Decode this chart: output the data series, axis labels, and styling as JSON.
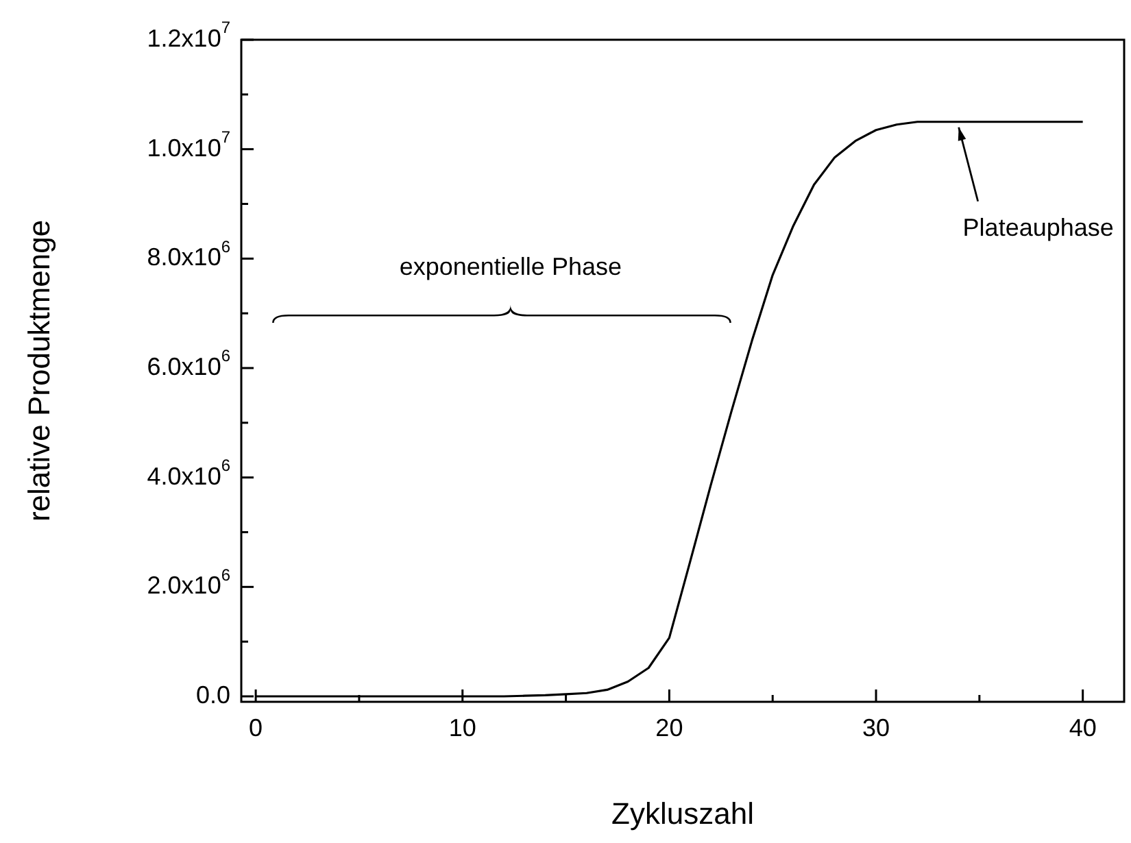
{
  "chart_data": {
    "type": "line",
    "xlabel": "Zykluszahl",
    "ylabel": "relative Produktmenge",
    "x": [
      0,
      1,
      2,
      3,
      4,
      5,
      6,
      7,
      8,
      9,
      10,
      11,
      12,
      13,
      14,
      15,
      16,
      17,
      18,
      19,
      20,
      21,
      22,
      23,
      24,
      25,
      26,
      27,
      28,
      29,
      30,
      31,
      32,
      33,
      34,
      35,
      36,
      37,
      38,
      39,
      40
    ],
    "series": [
      {
        "color": "#000000",
        "values": [
          0,
          0,
          0,
          0,
          0,
          0,
          0,
          0,
          0,
          0,
          0,
          0,
          0,
          10000,
          20000,
          40000,
          60000,
          120000,
          270000,
          520000,
          1070000,
          2450000,
          3850000,
          5200000,
          6500000,
          7700000,
          8600000,
          9350000,
          9850000,
          10150000,
          10350000,
          10450000,
          10500000,
          10500000,
          10500000,
          10500000,
          10500000,
          10500000,
          10500000,
          10500000,
          10500000
        ]
      }
    ],
    "xlim": [
      -0.7,
      42
    ],
    "xticks": [
      0,
      {
        "value": 5,
        "label": null
      },
      10,
      {
        "value": 15,
        "label": null
      },
      20,
      {
        "value": 25,
        "label": null
      },
      30,
      {
        "value": 35,
        "label": null
      },
      40
    ],
    "ylim": [
      -100000,
      12000000
    ],
    "yticks": [
      {
        "value": 0,
        "label": "0.0"
      },
      {
        "value": 1000000,
        "label": null
      },
      {
        "value": 2000000,
        "label": "2.0x10$^{6}$"
      },
      {
        "value": 3000000,
        "label": null
      },
      {
        "value": 4000000,
        "label": "4.0x10$^{6}$"
      },
      {
        "value": 5000000,
        "label": null
      },
      {
        "value": 6000000,
        "label": "6.0x10$^{6}$"
      },
      {
        "value": 7000000,
        "label": null
      },
      {
        "value": 8000000,
        "label": "8.0x10$^{6}$"
      },
      {
        "value": 9000000,
        "label": null
      },
      {
        "value": 10000000,
        "label": "1.0x10$^{7}$"
      },
      {
        "value": 11000000,
        "label": null
      },
      {
        "value": 12000000,
        "label": "1.2x10$^{7}$"
      }
    ],
    "annotations": [
      "exponentielle Phase",
      {
        "text": "Plateauphase",
        "x": 34,
        "y": 10500000
      }
    ],
    "grid": false,
    "legend": false,
    "line_style": "solid"
  }
}
